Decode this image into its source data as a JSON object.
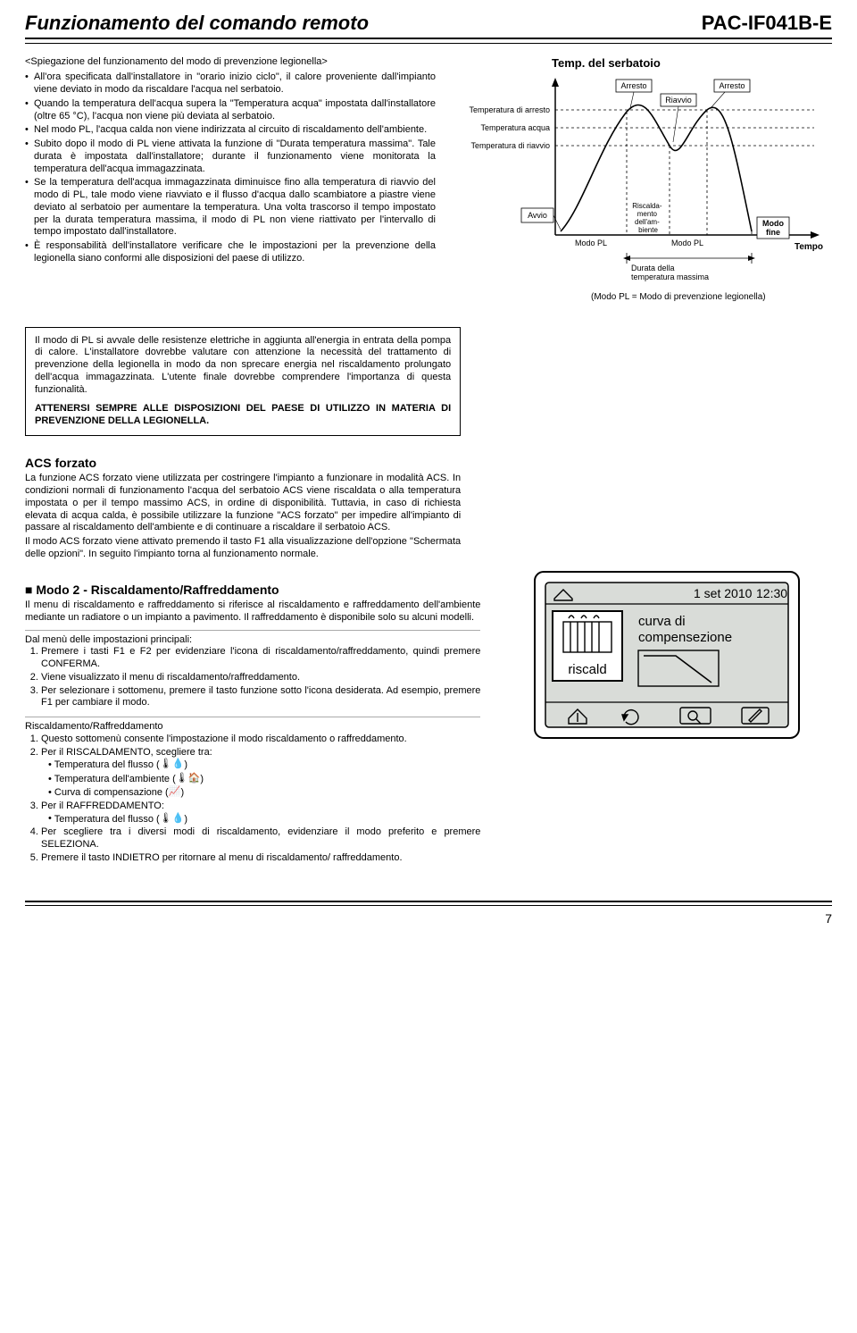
{
  "header": {
    "title": "Funzionamento del comando remoto",
    "model": "PAC-IF041B-E"
  },
  "legionella": {
    "subtitle": "<Spiegazione del funzionamento del modo di prevenzione legionella>",
    "bullets": [
      "All'ora specificata dall'installatore in \"orario inizio ciclo\", il calore proveniente dall'impianto viene deviato in modo da riscaldare l'acqua nel serbatoio.",
      "Quando la temperatura dell'acqua supera la \"Temperatura acqua\" impostata dall'installatore (oltre 65 °C), l'acqua non viene più deviata al serbatoio.",
      "Nel modo PL, l'acqua calda non viene indirizzata al circuito di riscaldamento dell'ambiente.",
      "Subito dopo il modo di PL viene attivata la funzione di \"Durata temperatura massima\". Tale durata è impostata dall'installatore; durante il funzionamento viene monitorata la temperatura dell'acqua immagazzinata.",
      "Se la temperatura dell'acqua immagazzinata diminuisce fino alla temperatura di riavvio del modo di PL, tale modo viene riavviato e il flusso d'acqua dallo scambiatore a piastre viene deviato al serbatoio per aumentare la temperatura. Una volta trascorso il tempo impostato per la durata temperatura massima, il modo di PL non viene riattivato per l'intervallo di tempo impostato dall'installatore.",
      "È responsabilità dell'installatore verificare che le impostazioni per la prevenzione della legionella siano conformi alle disposizioni del paese di utilizzo."
    ]
  },
  "chart": {
    "title": "Temp. del serbatoio",
    "y_labels": [
      "Temperatura di arresto",
      "Temperatura acqua",
      "Temperatura di riavvio"
    ],
    "x_labels": {
      "avvio": "Avvio",
      "modo_pl": "Modo PL",
      "riscaldamento": "Riscalda-\nmento\ndell'am-\nbiente",
      "modo_fine": "Modo\nfine",
      "tempo": "Tempo",
      "durata": "Durata della\ntemperatura massima"
    },
    "callouts": {
      "arresto": "Arresto",
      "riavvio": "Riavvio"
    },
    "footnote": "(Modo PL = Modo di prevenzione legionella)",
    "colors": {
      "axis": "#000000",
      "curve": "#000000",
      "dashed": "#000000",
      "box_border": "#000000"
    }
  },
  "note_box": {
    "body": "Il modo di PL si avvale delle resistenze elettriche in aggiunta all'energia in entrata della pompa di calore. L'installatore dovrebbe valutare con attenzione la necessità del trattamento di prevenzione della legionella in modo da non sprecare energia nel riscaldamento prolungato dell'acqua immagazzinata. L'utente finale dovrebbe comprendere l'importanza di questa funzionalità.",
    "warn": "ATTENERSI SEMPRE ALLE DISPOSIZIONI DEL PAESE DI UTILIZZO IN MATERIA DI PREVENZIONE DELLA LEGIONELLA."
  },
  "acs": {
    "heading": "ACS forzato",
    "body": "La funzione ACS forzato viene utilizzata per costringere l'impianto a funzionare in modalità ACS. In condizioni normali di funzionamento l'acqua del serbatoio ACS viene riscaldata o alla temperatura impostata o per il tempo massimo ACS, in ordine di disponibilità. Tuttavia, in caso di richiesta elevata di acqua calda, è possibile utilizzare la funzione \"ACS forzato\" per impedire all'impianto di passare al riscaldamento dell'ambiente e di continuare a riscaldare il serbatoio ACS.\nIl modo ACS forzato viene attivato premendo il tasto F1 alla visualizzazione dell'opzione \"Schermata delle opzioni\". In seguito l'impianto torna al funzionamento normale."
  },
  "modo2": {
    "heading": "■ Modo 2 - Riscaldamento/Raffreddamento",
    "intro": "Il menu di riscaldamento e raffreddamento si riferisce al riscaldamento e raffreddamento dell'ambiente mediante un radiatore o un impianto a pavimento. Il raffreddamento è disponibile solo su alcuni modelli.",
    "menu_lead": "Dal menù delle impostazioni principali:",
    "menu_steps": [
      "Premere i tasti F1 e F2 per evidenziare l'icona di riscaldamento/raffreddamento, quindi premere CONFERMA.",
      "Viene visualizzato il menu di riscaldamento/raffreddamento.",
      "Per selezionare i sottomenu, premere il tasto funzione sotto l'icona desiderata. Ad esempio, premere F1 per cambiare il modo."
    ],
    "sub_heading": "Riscaldamento/Raffreddamento",
    "sub_steps_1": "Questo sottomenù consente l'impostazione il modo riscaldamento o raffreddamento.",
    "sub_steps_2": "Per il RISCALDAMENTO, scegliere tra:",
    "heating_opts": [
      "Temperatura del flusso",
      "Temperatura dell'ambiente",
      "Curva di compensazione"
    ],
    "sub_steps_3": "Per il RAFFREDDAMENTO:",
    "cooling_opts": [
      "Temperatura del flusso"
    ],
    "sub_steps_4": "Per scegliere tra i diversi modi di riscaldamento, evidenziare il modo preferito e premere SELEZIONA.",
    "sub_steps_5": "Premere il tasto INDIETRO per ritornare al menu di riscaldamento/ raffreddamento."
  },
  "lcd": {
    "date": "1 set 2010",
    "time": "12:30",
    "left_label": "riscald",
    "right_label": "curva di\ncompensezione"
  },
  "page": {
    "number": "7"
  }
}
